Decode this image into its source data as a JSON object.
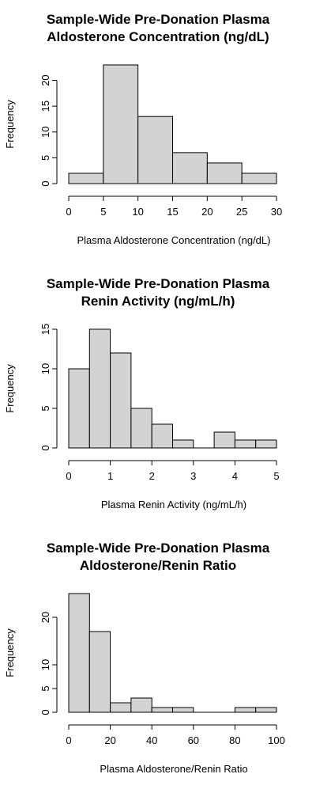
{
  "chart_data": [
    {
      "type": "bar",
      "title": [
        "Sample-Wide Pre-Donation Plasma",
        "Aldosterone Concentration (ng/dL)"
      ],
      "xlabel": "Plasma Aldosterone Concentration (ng/dL)",
      "ylabel": "Frequency",
      "bins": [
        [
          0,
          5
        ],
        [
          5,
          10
        ],
        [
          10,
          15
        ],
        [
          15,
          20
        ],
        [
          20,
          25
        ],
        [
          25,
          30
        ]
      ],
      "values": [
        2,
        23,
        13,
        6,
        4,
        2
      ],
      "xlim": [
        0,
        30
      ],
      "xticks": [
        0,
        5,
        10,
        15,
        20,
        25,
        30
      ],
      "ylim": [
        0,
        23
      ],
      "yticks": [
        0,
        5,
        10,
        15,
        20
      ]
    },
    {
      "type": "bar",
      "title": [
        "Sample-Wide Pre-Donation Plasma",
        "Renin Activity (ng/mL/h)"
      ],
      "xlabel": "Plasma Renin Activity (ng/mL/h)",
      "ylabel": "Frequency",
      "bins": [
        [
          0,
          0.5
        ],
        [
          0.5,
          1
        ],
        [
          1,
          1.5
        ],
        [
          1.5,
          2
        ],
        [
          2,
          2.5
        ],
        [
          2.5,
          3
        ],
        [
          3,
          3.5
        ],
        [
          3.5,
          4
        ],
        [
          4,
          4.5
        ],
        [
          4.5,
          5
        ]
      ],
      "values": [
        10,
        15,
        12,
        5,
        3,
        1,
        0,
        2,
        1,
        1
      ],
      "xlim": [
        0,
        5
      ],
      "xticks": [
        0,
        1,
        2,
        3,
        4,
        5
      ],
      "ylim": [
        0,
        15
      ],
      "yticks": [
        0,
        5,
        10,
        15
      ]
    },
    {
      "type": "bar",
      "title": [
        "Sample-Wide Pre-Donation Plasma",
        "Aldosterone/Renin Ratio"
      ],
      "xlabel": "Plasma Aldosterone/Renin Ratio",
      "ylabel": "Frequency",
      "bins": [
        [
          0,
          10
        ],
        [
          10,
          20
        ],
        [
          20,
          30
        ],
        [
          30,
          40
        ],
        [
          40,
          50
        ],
        [
          50,
          60
        ],
        [
          60,
          70
        ],
        [
          70,
          80
        ],
        [
          80,
          90
        ],
        [
          90,
          100
        ]
      ],
      "values": [
        25,
        17,
        2,
        3,
        1,
        1,
        0,
        0,
        1,
        1
      ],
      "xlim": [
        0,
        100
      ],
      "xticks": [
        0,
        20,
        40,
        60,
        80,
        100
      ],
      "ylim": [
        0,
        25
      ],
      "yticks": [
        0,
        5,
        10,
        20
      ]
    }
  ]
}
